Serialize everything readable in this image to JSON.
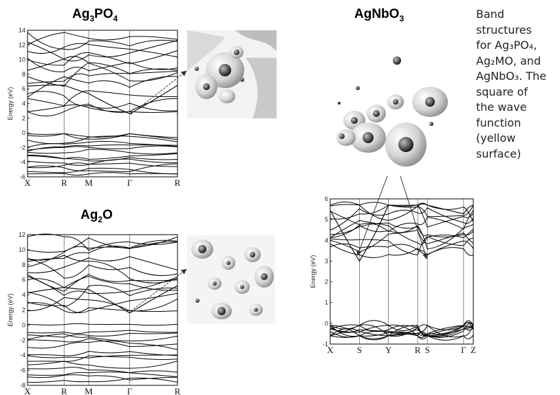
{
  "titles": {
    "ag3po4": {
      "main": "Ag",
      "s1": "3",
      "mid": "PO",
      "s2": "4"
    },
    "ag2o": {
      "main": "Ag",
      "s1": "2",
      "mid": "O"
    },
    "agnbo3": {
      "main": "AgNbO",
      "s1": "3"
    }
  },
  "caption_lines": [
    "Band",
    "structures",
    "for Ag₃PO₄,",
    "Ag₂MO, and",
    "AgNbO₃. The",
    "square of",
    "the wave",
    "function",
    "(yellow",
    "surface)"
  ],
  "chart_data": [
    {
      "type": "line",
      "title": "Ag3PO4",
      "ylabel": "Energy (eV)",
      "ylim": [
        -6,
        14
      ],
      "yticks": [
        -6,
        -4,
        -2,
        0,
        2,
        4,
        6,
        8,
        10,
        12,
        14
      ],
      "kpoints": [
        "X",
        "R",
        "M",
        "Γ",
        "R"
      ],
      "kpoint_pos": [
        0,
        0.244,
        0.408,
        0.681,
        1.0
      ]
    },
    {
      "type": "line",
      "title": "Ag2O",
      "ylabel": "Energy (eV)",
      "ylim": [
        -8,
        12
      ],
      "yticks": [
        -8,
        -6,
        -4,
        -2,
        0,
        2,
        4,
        6,
        8,
        10,
        12
      ],
      "kpoints": [
        "X",
        "R",
        "M",
        "Γ",
        "R"
      ],
      "kpoint_pos": [
        0,
        0.244,
        0.408,
        0.681,
        1.0
      ]
    },
    {
      "type": "line",
      "title": "AgNbO3",
      "ylabel": "Energy (eV)",
      "ylim": [
        -1,
        6
      ],
      "yticks": [
        -1,
        0,
        1,
        2,
        3,
        4,
        5,
        6
      ],
      "kpoints": [
        "X",
        "S",
        "Y",
        "R",
        "S",
        "Γ",
        "Z"
      ],
      "kpoint_pos": [
        0,
        0.204,
        0.407,
        0.611,
        0.679,
        0.932,
        1.0
      ]
    }
  ]
}
